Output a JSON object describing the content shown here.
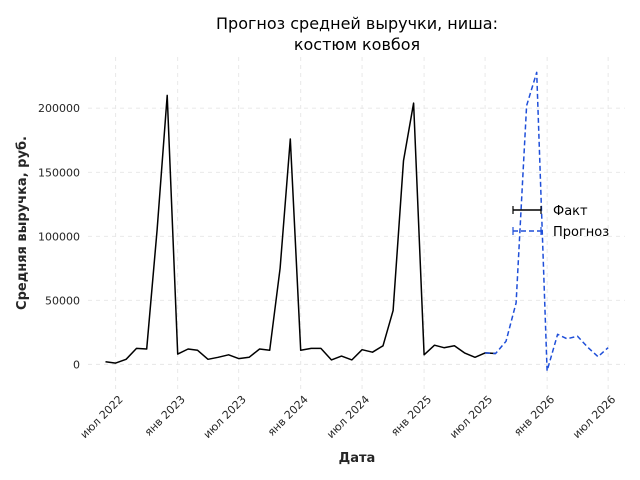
{
  "chart_data": {
    "type": "line",
    "title": "Прогноз средней выручки, ниша:",
    "title_line2": "костюм ковбоя",
    "xlabel": "Дата",
    "ylabel": "Средняя выручка, руб.",
    "ylim": [
      -20000,
      240000
    ],
    "xlim": [
      "2022-04-10",
      "2026-08-20"
    ],
    "yticks": [
      0,
      50000,
      100000,
      150000,
      200000
    ],
    "ytick_labels": [
      "0",
      "50000",
      "100000",
      "150000",
      "200000"
    ],
    "xticks": [
      "2022-07-01",
      "2023-01-01",
      "2023-07-01",
      "2024-01-01",
      "2024-07-01",
      "2025-01-01",
      "2025-07-01",
      "2026-01-01",
      "2026-07-01"
    ],
    "xtick_labels": [
      "июл 2022",
      "янв 2023",
      "июл 2023",
      "янв 2024",
      "июл 2024",
      "янв 2025",
      "июл 2025",
      "янв 2026",
      "июл 2026"
    ],
    "grid": true,
    "legend_position": "right",
    "series": [
      {
        "name": "Факт",
        "color": "#000000",
        "style": "solid",
        "x": [
          "2022-06-01",
          "2022-07-01",
          "2022-08-01",
          "2022-09-01",
          "2022-10-01",
          "2022-11-01",
          "2022-12-01",
          "2023-01-01",
          "2023-02-01",
          "2023-03-01",
          "2023-04-01",
          "2023-05-01",
          "2023-06-01",
          "2023-07-01",
          "2023-08-01",
          "2023-09-01",
          "2023-10-01",
          "2023-11-01",
          "2023-12-01",
          "2024-01-01",
          "2024-02-01",
          "2024-03-01",
          "2024-04-01",
          "2024-05-01",
          "2024-06-01",
          "2024-07-01",
          "2024-08-01",
          "2024-09-01",
          "2024-10-01",
          "2024-11-01",
          "2024-12-01",
          "2025-01-01",
          "2025-02-01",
          "2025-03-01",
          "2025-04-01",
          "2025-05-01",
          "2025-06-01",
          "2025-07-01",
          "2025-08-01"
        ],
        "values": [
          2000,
          1000,
          4000,
          12500,
          12000,
          105000,
          210000,
          8000,
          12000,
          11000,
          4000,
          5500,
          7500,
          4500,
          5500,
          12000,
          11000,
          75000,
          176000,
          11000,
          12500,
          12500,
          3500,
          6500,
          3500,
          11500,
          9500,
          14500,
          42000,
          159000,
          204000,
          7500,
          15000,
          13000,
          14500,
          9000,
          5500,
          9000,
          8500
        ]
      },
      {
        "name": "Прогноз",
        "color": "#1f4fd9",
        "style": "dashed",
        "x": [
          "2025-07-01",
          "2025-08-01",
          "2025-09-01",
          "2025-10-01",
          "2025-11-01",
          "2025-12-01",
          "2026-01-01",
          "2026-02-01",
          "2026-03-01",
          "2026-04-01",
          "2026-05-01",
          "2026-06-01",
          "2026-07-01"
        ],
        "values": [
          9000,
          8500,
          18000,
          48000,
          202000,
          228000,
          -5000,
          23500,
          20000,
          22000,
          13500,
          6000,
          13000
        ]
      }
    ]
  }
}
